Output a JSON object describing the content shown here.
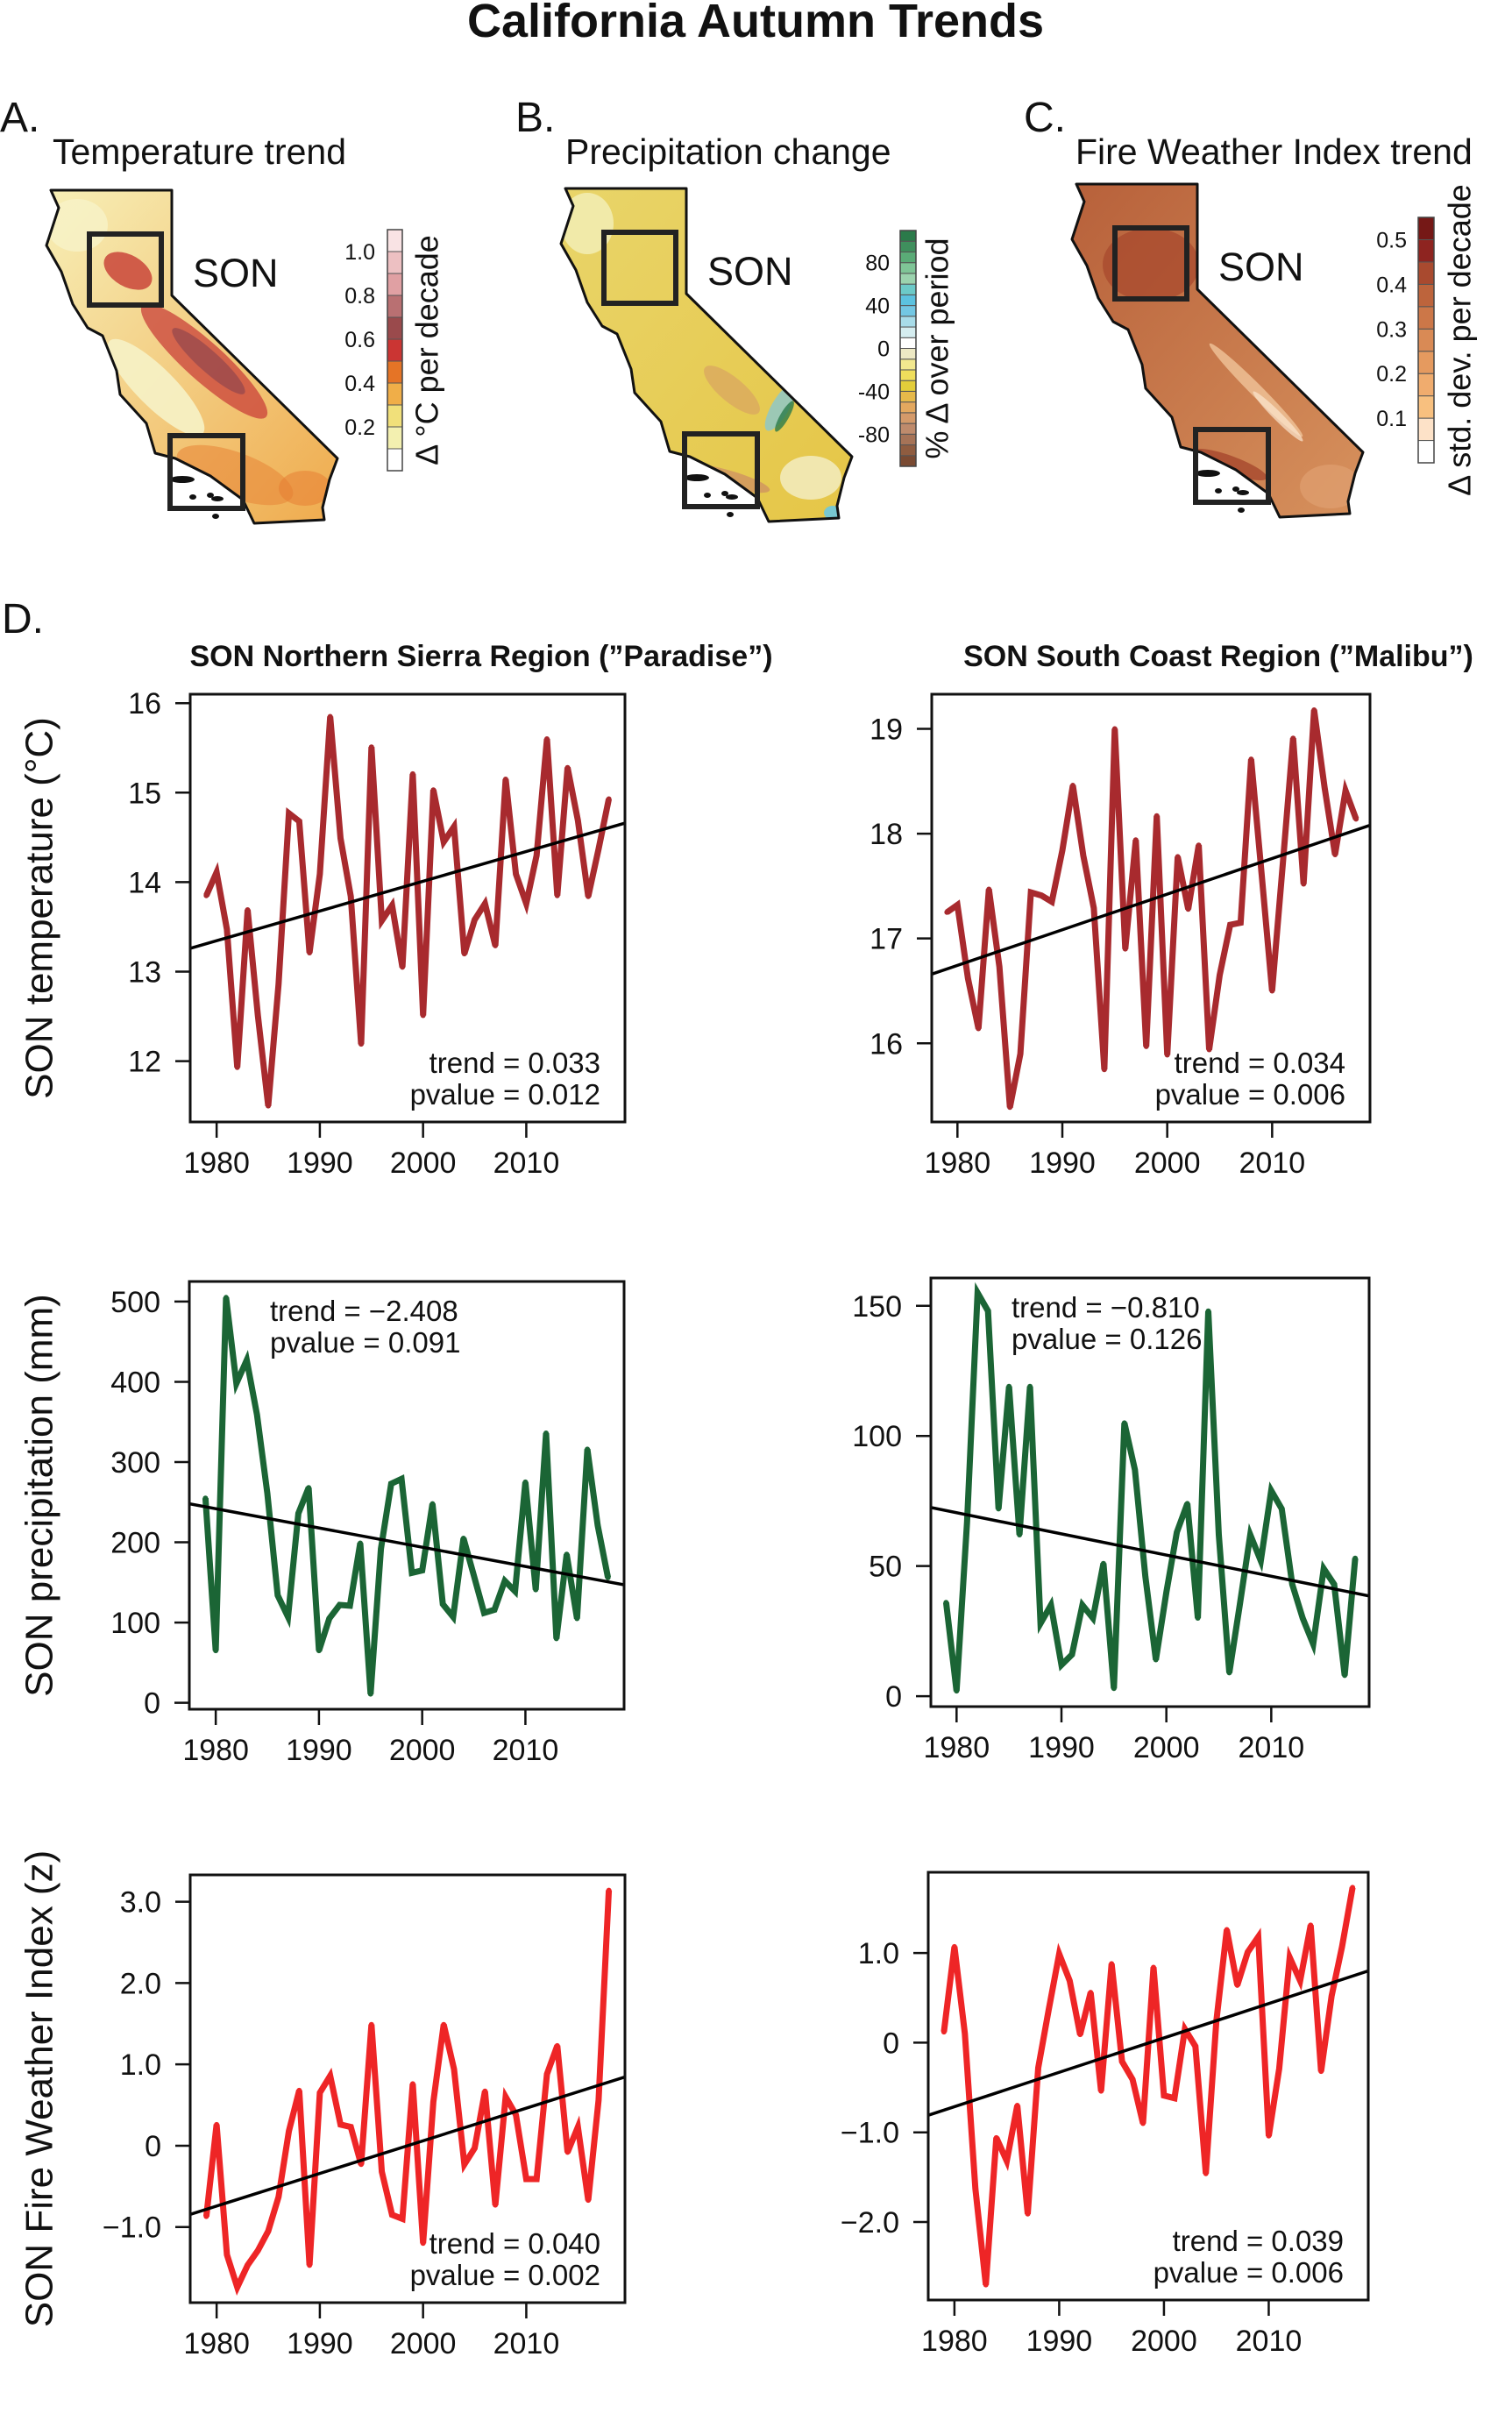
{
  "title": "California Autumn Trends",
  "maps": [
    {
      "letter": "A.",
      "title": "Temperature trend",
      "season": "SON",
      "colorbar": {
        "label": "Δ °C per decade",
        "range": [
          0,
          1.1
        ],
        "ticks": [
          {
            "value": 0.2,
            "label": "0.2"
          },
          {
            "value": 0.4,
            "label": "0.4"
          },
          {
            "value": 0.6,
            "label": "0.6"
          },
          {
            "value": 0.8,
            "label": "0.8"
          },
          {
            "value": 1.0,
            "label": "1.0"
          }
        ],
        "colors": [
          "#ffffff",
          "#f3f0b0",
          "#f1e07a",
          "#f0ae48",
          "#e57426",
          "#cb3533",
          "#9a4a4c",
          "#b97072",
          "#e0a0a3",
          "#edc0c2",
          "#f9e3e4"
        ]
      }
    },
    {
      "letter": "B.",
      "title": "Precipitation change",
      "season": "SON",
      "colorbar": {
        "label": "% Δ over period",
        "range": [
          -110,
          110
        ],
        "ticks": [
          {
            "value": -80,
            "label": "-80"
          },
          {
            "value": -40,
            "label": "-40"
          },
          {
            "value": 0,
            "label": "0"
          },
          {
            "value": 40,
            "label": "40"
          },
          {
            "value": 80,
            "label": "80"
          }
        ],
        "colors": [
          "#7a4a32",
          "#8f5c40",
          "#a67357",
          "#bf8b6c",
          "#d49a6a",
          "#e3a85f",
          "#e6b94a",
          "#e3cd3a",
          "#efde5c",
          "#f2e88f",
          "#ede9c4",
          "#ffffff",
          "#d5edf0",
          "#a8dce9",
          "#73c7e3",
          "#5cc2df",
          "#6ccac8",
          "#9bd3ae",
          "#7fc597",
          "#5aab77",
          "#3f8f5d",
          "#2b7a4a"
        ]
      }
    },
    {
      "letter": "C.",
      "title": "Fire Weather Index trend",
      "season": "SON",
      "colorbar": {
        "label": "Δ std. dev. per decade",
        "range": [
          0,
          0.55
        ],
        "ticks": [
          {
            "value": 0.1,
            "label": "0.1"
          },
          {
            "value": 0.2,
            "label": "0.2"
          },
          {
            "value": 0.3,
            "label": "0.3"
          },
          {
            "value": 0.4,
            "label": "0.4"
          },
          {
            "value": 0.5,
            "label": "0.5"
          }
        ],
        "colors": [
          "#ffffff",
          "#fde2c8",
          "#f8c07f",
          "#f0ac6e",
          "#e59a5f",
          "#d98a55",
          "#cc7748",
          "#bd643c",
          "#a94a2f",
          "#8e2420",
          "#751816"
        ]
      }
    }
  ],
  "panel_d": {
    "letter": "D.",
    "columns": [
      "SON Northern Sierra Region (”Paradise”)",
      "SON South Coast Region (”Malibu”)"
    ]
  },
  "chart_data": [
    {
      "type": "line",
      "region": "SON Northern Sierra Region (”Paradise”)",
      "ylabel": "SON temperature (°C)",
      "color": "#a82a2e",
      "xlim": [
        1977.44,
        2019.56
      ],
      "ylim": [
        11.32,
        16.1
      ],
      "x_ticks": [
        {
          "value": 1980,
          "label": "1980"
        },
        {
          "value": 1990,
          "label": "1990"
        },
        {
          "value": 2000,
          "label": "2000"
        },
        {
          "value": 2010,
          "label": "2010"
        }
      ],
      "y_ticks": [
        {
          "value": 12,
          "label": "12"
        },
        {
          "value": 13,
          "label": "13"
        },
        {
          "value": 14,
          "label": "14"
        },
        {
          "value": 15,
          "label": "15"
        },
        {
          "value": 16,
          "label": "16"
        }
      ],
      "x": [
        1979,
        1980,
        1981,
        1982,
        1983,
        1984,
        1985,
        1986,
        1987,
        1988,
        1989,
        1990,
        1991,
        1992,
        1993,
        1994,
        1995,
        1996,
        1997,
        1998,
        1999,
        2000,
        2001,
        2002,
        2003,
        2004,
        2005,
        2006,
        2007,
        2008,
        2009,
        2010,
        2011,
        2012,
        2013,
        2014,
        2015,
        2016,
        2017,
        2018
      ],
      "y": [
        13.85,
        14.11,
        13.47,
        11.93,
        13.69,
        12.51,
        11.5,
        12.86,
        14.77,
        14.68,
        13.21,
        14.09,
        15.85,
        14.49,
        13.84,
        12.19,
        15.51,
        13.57,
        13.74,
        13.05,
        15.21,
        12.51,
        15.03,
        14.45,
        14.62,
        13.2,
        13.58,
        13.76,
        13.29,
        15.15,
        14.09,
        13.76,
        14.3,
        15.6,
        13.85,
        15.28,
        14.69,
        13.84,
        14.37,
        14.93
      ],
      "trend_line": {
        "x": [
          1977.44,
          2019.56
        ],
        "y": [
          13.26,
          14.66
        ]
      },
      "annotation": {
        "trend": "trend = 0.033",
        "pvalue": "pvalue = 0.012",
        "position": "bottom-right"
      }
    },
    {
      "type": "line",
      "region": "SON South Coast Region (”Malibu”)",
      "ylabel": "",
      "color": "#a82a2e",
      "xlim": [
        1977.55,
        2019.33
      ],
      "ylim": [
        15.25,
        19.33
      ],
      "x_ticks": [
        {
          "value": 1980,
          "label": "1980"
        },
        {
          "value": 1990,
          "label": "1990"
        },
        {
          "value": 2000,
          "label": "2000"
        },
        {
          "value": 2010,
          "label": "2010"
        }
      ],
      "y_ticks": [
        {
          "value": 16,
          "label": "16"
        },
        {
          "value": 17,
          "label": "17"
        },
        {
          "value": 18,
          "label": "18"
        },
        {
          "value": 19,
          "label": "19"
        }
      ],
      "x": [
        1979,
        1980,
        1981,
        1982,
        1983,
        1984,
        1985,
        1986,
        1987,
        1988,
        1989,
        1990,
        1991,
        1992,
        1993,
        1994,
        1995,
        1996,
        1997,
        1998,
        1999,
        2000,
        2001,
        2002,
        2003,
        2004,
        2005,
        2006,
        2007,
        2008,
        2009,
        2010,
        2011,
        2012,
        2013,
        2014,
        2015,
        2016,
        2017,
        2018
      ],
      "y": [
        17.25,
        17.32,
        16.62,
        16.14,
        17.47,
        16.73,
        15.39,
        15.9,
        17.44,
        17.41,
        17.35,
        17.84,
        18.46,
        17.79,
        17.29,
        15.75,
        19.0,
        16.9,
        17.94,
        15.97,
        18.17,
        15.89,
        17.78,
        17.28,
        17.89,
        15.94,
        16.65,
        17.13,
        17.15,
        18.71,
        17.61,
        16.5,
        17.69,
        18.91,
        17.52,
        19.18,
        18.44,
        17.8,
        18.41,
        18.14
      ],
      "trend_line": {
        "x": [
          1977.55,
          2019.33
        ],
        "y": [
          16.66,
          18.08
        ]
      },
      "annotation": {
        "trend": "trend = 0.034",
        "pvalue": "pvalue = 0.006",
        "position": "bottom-right"
      }
    },
    {
      "type": "line",
      "region": "SON Northern Sierra Region (”Paradise”)",
      "ylabel": "SON precipitation (mm)",
      "color": "#1b6535",
      "xlim": [
        1977.44,
        2019.56
      ],
      "ylim": [
        -8,
        525
      ],
      "x_ticks": [
        {
          "value": 1980,
          "label": "1980"
        },
        {
          "value": 1990,
          "label": "1990"
        },
        {
          "value": 2000,
          "label": "2000"
        },
        {
          "value": 2010,
          "label": "2010"
        }
      ],
      "y_ticks": [
        {
          "value": 0,
          "label": "0"
        },
        {
          "value": 100,
          "label": "100"
        },
        {
          "value": 200,
          "label": "200"
        },
        {
          "value": 300,
          "label": "300"
        },
        {
          "value": 400,
          "label": "400"
        },
        {
          "value": 500,
          "label": "500"
        }
      ],
      "x": [
        1979,
        1980,
        1981,
        1982,
        1983,
        1984,
        1985,
        1986,
        1987,
        1988,
        1989,
        1990,
        1991,
        1992,
        1993,
        1994,
        1995,
        1996,
        1997,
        1998,
        1999,
        2000,
        2001,
        2002,
        2003,
        2004,
        2005,
        2006,
        2007,
        2008,
        2009,
        2010,
        2011,
        2012,
        2013,
        2014,
        2015,
        2016,
        2017,
        2018
      ],
      "y": [
        255,
        65,
        505,
        398,
        427,
        359,
        261,
        134,
        107,
        236,
        268,
        65,
        105,
        122,
        121,
        199,
        11,
        192,
        273,
        279,
        162,
        165,
        248,
        123,
        107,
        205,
        159,
        112,
        116,
        152,
        139,
        275,
        141,
        336,
        80,
        185,
        105,
        316,
        221,
        156
      ],
      "trend_line": {
        "x": [
          1977.44,
          2019.56
        ],
        "y": [
          248,
          147
        ]
      },
      "annotation": {
        "trend": "trend = −2.408",
        "pvalue": "pvalue = 0.091",
        "position": "top-left"
      }
    },
    {
      "type": "line",
      "region": "SON South Coast Region (”Malibu”)",
      "ylabel": "",
      "color": "#1b6535",
      "xlim": [
        1977.55,
        2019.33
      ],
      "ylim": [
        -4,
        160.7
      ],
      "x_ticks": [
        {
          "value": 1980,
          "label": "1980"
        },
        {
          "value": 1990,
          "label": "1990"
        },
        {
          "value": 2000,
          "label": "2000"
        },
        {
          "value": 2010,
          "label": "2010"
        }
      ],
      "y_ticks": [
        {
          "value": 0,
          "label": "0"
        },
        {
          "value": 50,
          "label": "50"
        },
        {
          "value": 100,
          "label": "100"
        },
        {
          "value": 150,
          "label": "150"
        }
      ],
      "x": [
        1979,
        1980,
        1981,
        1982,
        1983,
        1984,
        1985,
        1986,
        1987,
        1988,
        1989,
        1990,
        1991,
        1992,
        1993,
        1994,
        1995,
        1996,
        1997,
        1998,
        1999,
        2000,
        2001,
        2002,
        2003,
        2004,
        2005,
        2006,
        2007,
        2008,
        2009,
        2010,
        2011,
        2012,
        2013,
        2014,
        2015,
        2016,
        2017,
        2018
      ],
      "y": [
        36,
        2,
        67,
        155,
        148,
        72,
        119,
        62,
        119,
        28,
        35,
        12,
        16,
        35,
        30,
        51,
        3,
        105,
        87,
        46,
        14,
        40,
        63,
        74,
        30,
        148,
        62,
        9,
        35,
        62,
        52,
        79,
        72,
        43,
        30,
        20,
        49,
        43,
        8,
        53
      ],
      "trend_line": {
        "x": [
          1977.55,
          2019.33
        ],
        "y": [
          72.5,
          38.5
        ]
      },
      "annotation": {
        "trend": "trend = −0.810",
        "pvalue": "pvalue = 0.126",
        "position": "top-left"
      }
    },
    {
      "type": "line",
      "region": "SON Northern Sierra Region (”Paradise”)",
      "ylabel": "SON Fire Weather Index (z)",
      "color": "#ee2526",
      "xlim": [
        1977.44,
        2019.56
      ],
      "ylim": [
        -1.93,
        3.33
      ],
      "x_ticks": [
        {
          "value": 1980,
          "label": "1980"
        },
        {
          "value": 1990,
          "label": "1990"
        },
        {
          "value": 2000,
          "label": "2000"
        },
        {
          "value": 2010,
          "label": "2010"
        }
      ],
      "y_ticks": [
        {
          "value": -1,
          "label": "−1.0"
        },
        {
          "value": 0,
          "label": "0"
        },
        {
          "value": 1,
          "label": "1.0"
        },
        {
          "value": 2,
          "label": "2.0"
        },
        {
          "value": 3,
          "label": "3.0"
        }
      ],
      "x": [
        1979,
        1980,
        1981,
        1982,
        1983,
        1984,
        1985,
        1986,
        1987,
        1988,
        1989,
        1990,
        1991,
        1992,
        1993,
        1994,
        1995,
        1996,
        1997,
        1998,
        1999,
        2000,
        2001,
        2002,
        2003,
        2004,
        2005,
        2006,
        2007,
        2008,
        2009,
        2010,
        2011,
        2012,
        2013,
        2014,
        2015,
        2016,
        2017,
        2018
      ],
      "y": [
        -0.87,
        0.26,
        -1.34,
        -1.74,
        -1.47,
        -1.29,
        -1.05,
        -0.63,
        0.18,
        0.68,
        -1.47,
        0.65,
        0.86,
        0.26,
        0.23,
        -0.23,
        1.49,
        -0.32,
        -0.85,
        -0.9,
        0.76,
        -1.2,
        0.54,
        1.49,
        0.94,
        -0.23,
        -0.03,
        0.67,
        -0.73,
        0.6,
        0.38,
        -0.41,
        -0.41,
        0.88,
        1.23,
        -0.08,
        0.23,
        -0.67,
        0.56,
        3.14
      ],
      "trend_line": {
        "x": [
          1977.44,
          2019.56
        ],
        "y": [
          -0.845,
          0.845
        ]
      },
      "annotation": {
        "trend": "trend = 0.040",
        "pvalue": "pvalue = 0.002",
        "position": "bottom-right"
      }
    },
    {
      "type": "line",
      "region": "SON South Coast Region (”Malibu”)",
      "ylabel": "",
      "color": "#ee2526",
      "xlim": [
        1977.5,
        2019.5
      ],
      "ylim": [
        -2.87,
        1.9
      ],
      "x_ticks": [
        {
          "value": 1980,
          "label": "1980"
        },
        {
          "value": 1990,
          "label": "1990"
        },
        {
          "value": 2000,
          "label": "2000"
        },
        {
          "value": 2010,
          "label": "2010"
        }
      ],
      "y_ticks": [
        {
          "value": -2,
          "label": "−2.0"
        },
        {
          "value": -1,
          "label": "−1.0"
        },
        {
          "value": 0,
          "label": "0"
        },
        {
          "value": 1,
          "label": "1.0"
        }
      ],
      "x": [
        1979,
        1980,
        1981,
        1982,
        1983,
        1984,
        1985,
        1986,
        1987,
        1988,
        1989,
        1990,
        1991,
        1992,
        1993,
        1994,
        1995,
        1996,
        1997,
        1998,
        1999,
        2000,
        2001,
        2002,
        2003,
        2004,
        2005,
        2006,
        2007,
        2008,
        2009,
        2010,
        2011,
        2012,
        2013,
        2014,
        2015,
        2016,
        2017,
        2018
      ],
      "y": [
        0.12,
        1.07,
        0.1,
        -1.63,
        -2.7,
        -1.06,
        -1.32,
        -0.7,
        -1.91,
        -0.28,
        0.37,
        0.99,
        0.69,
        0.09,
        0.56,
        -0.54,
        0.88,
        -0.21,
        -0.41,
        -0.9,
        0.84,
        -0.59,
        -0.62,
        0.15,
        -0.04,
        -1.46,
        0.24,
        1.26,
        0.64,
        1.01,
        1.18,
        -1.04,
        -0.29,
        0.95,
        0.69,
        1.31,
        -0.32,
        0.52,
        1.07,
        1.73
      ],
      "trend_line": {
        "x": [
          1977.5,
          2019.5
        ],
        "y": [
          -0.81,
          0.8
        ]
      },
      "annotation": {
        "trend": "trend = 0.039",
        "pvalue": "pvalue = 0.006",
        "position": "bottom-right"
      }
    }
  ]
}
